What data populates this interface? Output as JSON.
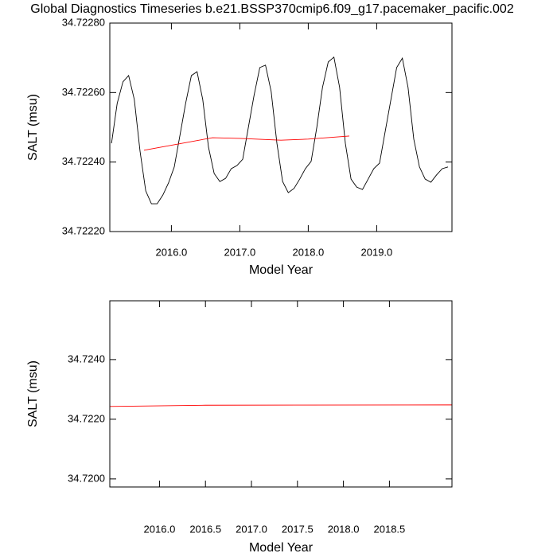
{
  "chart_data": [
    {
      "type": "line",
      "title": "Global Diagnostics Timeseries b.e21.BSSP370cmip6.f09_g17.pacemaker_pacific.002",
      "xlabel": "Model Year",
      "ylabel": "SALT (msu)",
      "xlim": [
        2015.1,
        2020.1
      ],
      "ylim": [
        34.7222,
        34.7228
      ],
      "xticks": [
        {
          "value": 2016,
          "label": "2016.0"
        },
        {
          "value": 2017,
          "label": "2017.0"
        },
        {
          "value": 2018,
          "label": "2018.0"
        },
        {
          "value": 2019,
          "label": "2019.0"
        }
      ],
      "yticks": [
        {
          "value": 34.7222,
          "label": "34.72220"
        },
        {
          "value": 34.7224,
          "label": "34.72240"
        },
        {
          "value": 34.7226,
          "label": "34.72260"
        },
        {
          "value": 34.7228,
          "label": "34.72280"
        }
      ],
      "series": [
        {
          "color": "#000000",
          "x": [
            2015.125,
            2015.208,
            2015.292,
            2015.375,
            2015.458,
            2015.542,
            2015.625,
            2015.708,
            2015.792,
            2015.875,
            2015.958,
            2016.042,
            2016.125,
            2016.208,
            2016.292,
            2016.375,
            2016.458,
            2016.542,
            2016.625,
            2016.708,
            2016.792,
            2016.875,
            2016.958,
            2017.042,
            2017.125,
            2017.208,
            2017.292,
            2017.375,
            2017.458,
            2017.542,
            2017.625,
            2017.708,
            2017.792,
            2017.875,
            2017.958,
            2018.042,
            2018.125,
            2018.208,
            2018.292,
            2018.375,
            2018.458,
            2018.542,
            2018.625,
            2018.708,
            2018.792,
            2018.875,
            2018.958,
            2019.042,
            2019.125,
            2019.208,
            2019.292,
            2019.375,
            2019.458,
            2019.542,
            2019.625,
            2019.708,
            2019.792,
            2019.875,
            2019.958,
            2020.042
          ],
          "values": [
            34.722454,
            34.722569,
            34.722631,
            34.722649,
            34.72258,
            34.722431,
            34.722317,
            34.72228,
            34.72228,
            34.722305,
            34.72234,
            34.722386,
            34.722477,
            34.722569,
            34.722649,
            34.72266,
            34.72258,
            34.722443,
            34.722367,
            34.722344,
            34.722353,
            34.722381,
            34.72239,
            34.722408,
            34.7225,
            34.722592,
            34.722672,
            34.722679,
            34.722603,
            34.722454,
            34.722344,
            34.722312,
            34.722324,
            34.722351,
            34.722381,
            34.722402,
            34.7225,
            34.722615,
            34.722688,
            34.722702,
            34.722615,
            34.722454,
            34.722351,
            34.722328,
            34.722321,
            34.722351,
            34.722381,
            34.722397,
            34.722489,
            34.72258,
            34.722672,
            34.722699,
            34.722615,
            34.722466,
            34.722386,
            34.722351,
            34.722342,
            34.722363,
            34.722381,
            34.722386
          ]
        },
        {
          "color": "#ff0000",
          "x": [
            2015.6,
            2016.6,
            2017.0,
            2017.6,
            2018.0,
            2018.6
          ],
          "values": [
            34.722434,
            34.72247,
            34.722468,
            34.722463,
            34.722466,
            34.722475
          ]
        }
      ]
    },
    {
      "type": "line",
      "xlabel": "Model Year",
      "ylabel": "SALT (msu)",
      "xlim": [
        2015.46,
        2019.18
      ],
      "ylim": [
        34.71973,
        34.72597
      ],
      "xticks": [
        {
          "value": 2016,
          "label": "2016.0"
        },
        {
          "value": 2016.5,
          "label": "2016.5"
        },
        {
          "value": 2017,
          "label": "2017.0"
        },
        {
          "value": 2017.5,
          "label": "2017.5"
        },
        {
          "value": 2018,
          "label": "2018.0"
        },
        {
          "value": 2018.5,
          "label": "2018.5"
        }
      ],
      "yticks": [
        {
          "value": 34.72,
          "label": "34.7200"
        },
        {
          "value": 34.722,
          "label": "34.7220"
        },
        {
          "value": 34.724,
          "label": "34.7240"
        }
      ],
      "series": [
        {
          "color": "#ff0000",
          "x": [
            2015.46,
            2016.5,
            2017.5,
            2019.18
          ],
          "values": [
            34.722427,
            34.72247,
            34.722475,
            34.72248
          ]
        }
      ]
    }
  ]
}
